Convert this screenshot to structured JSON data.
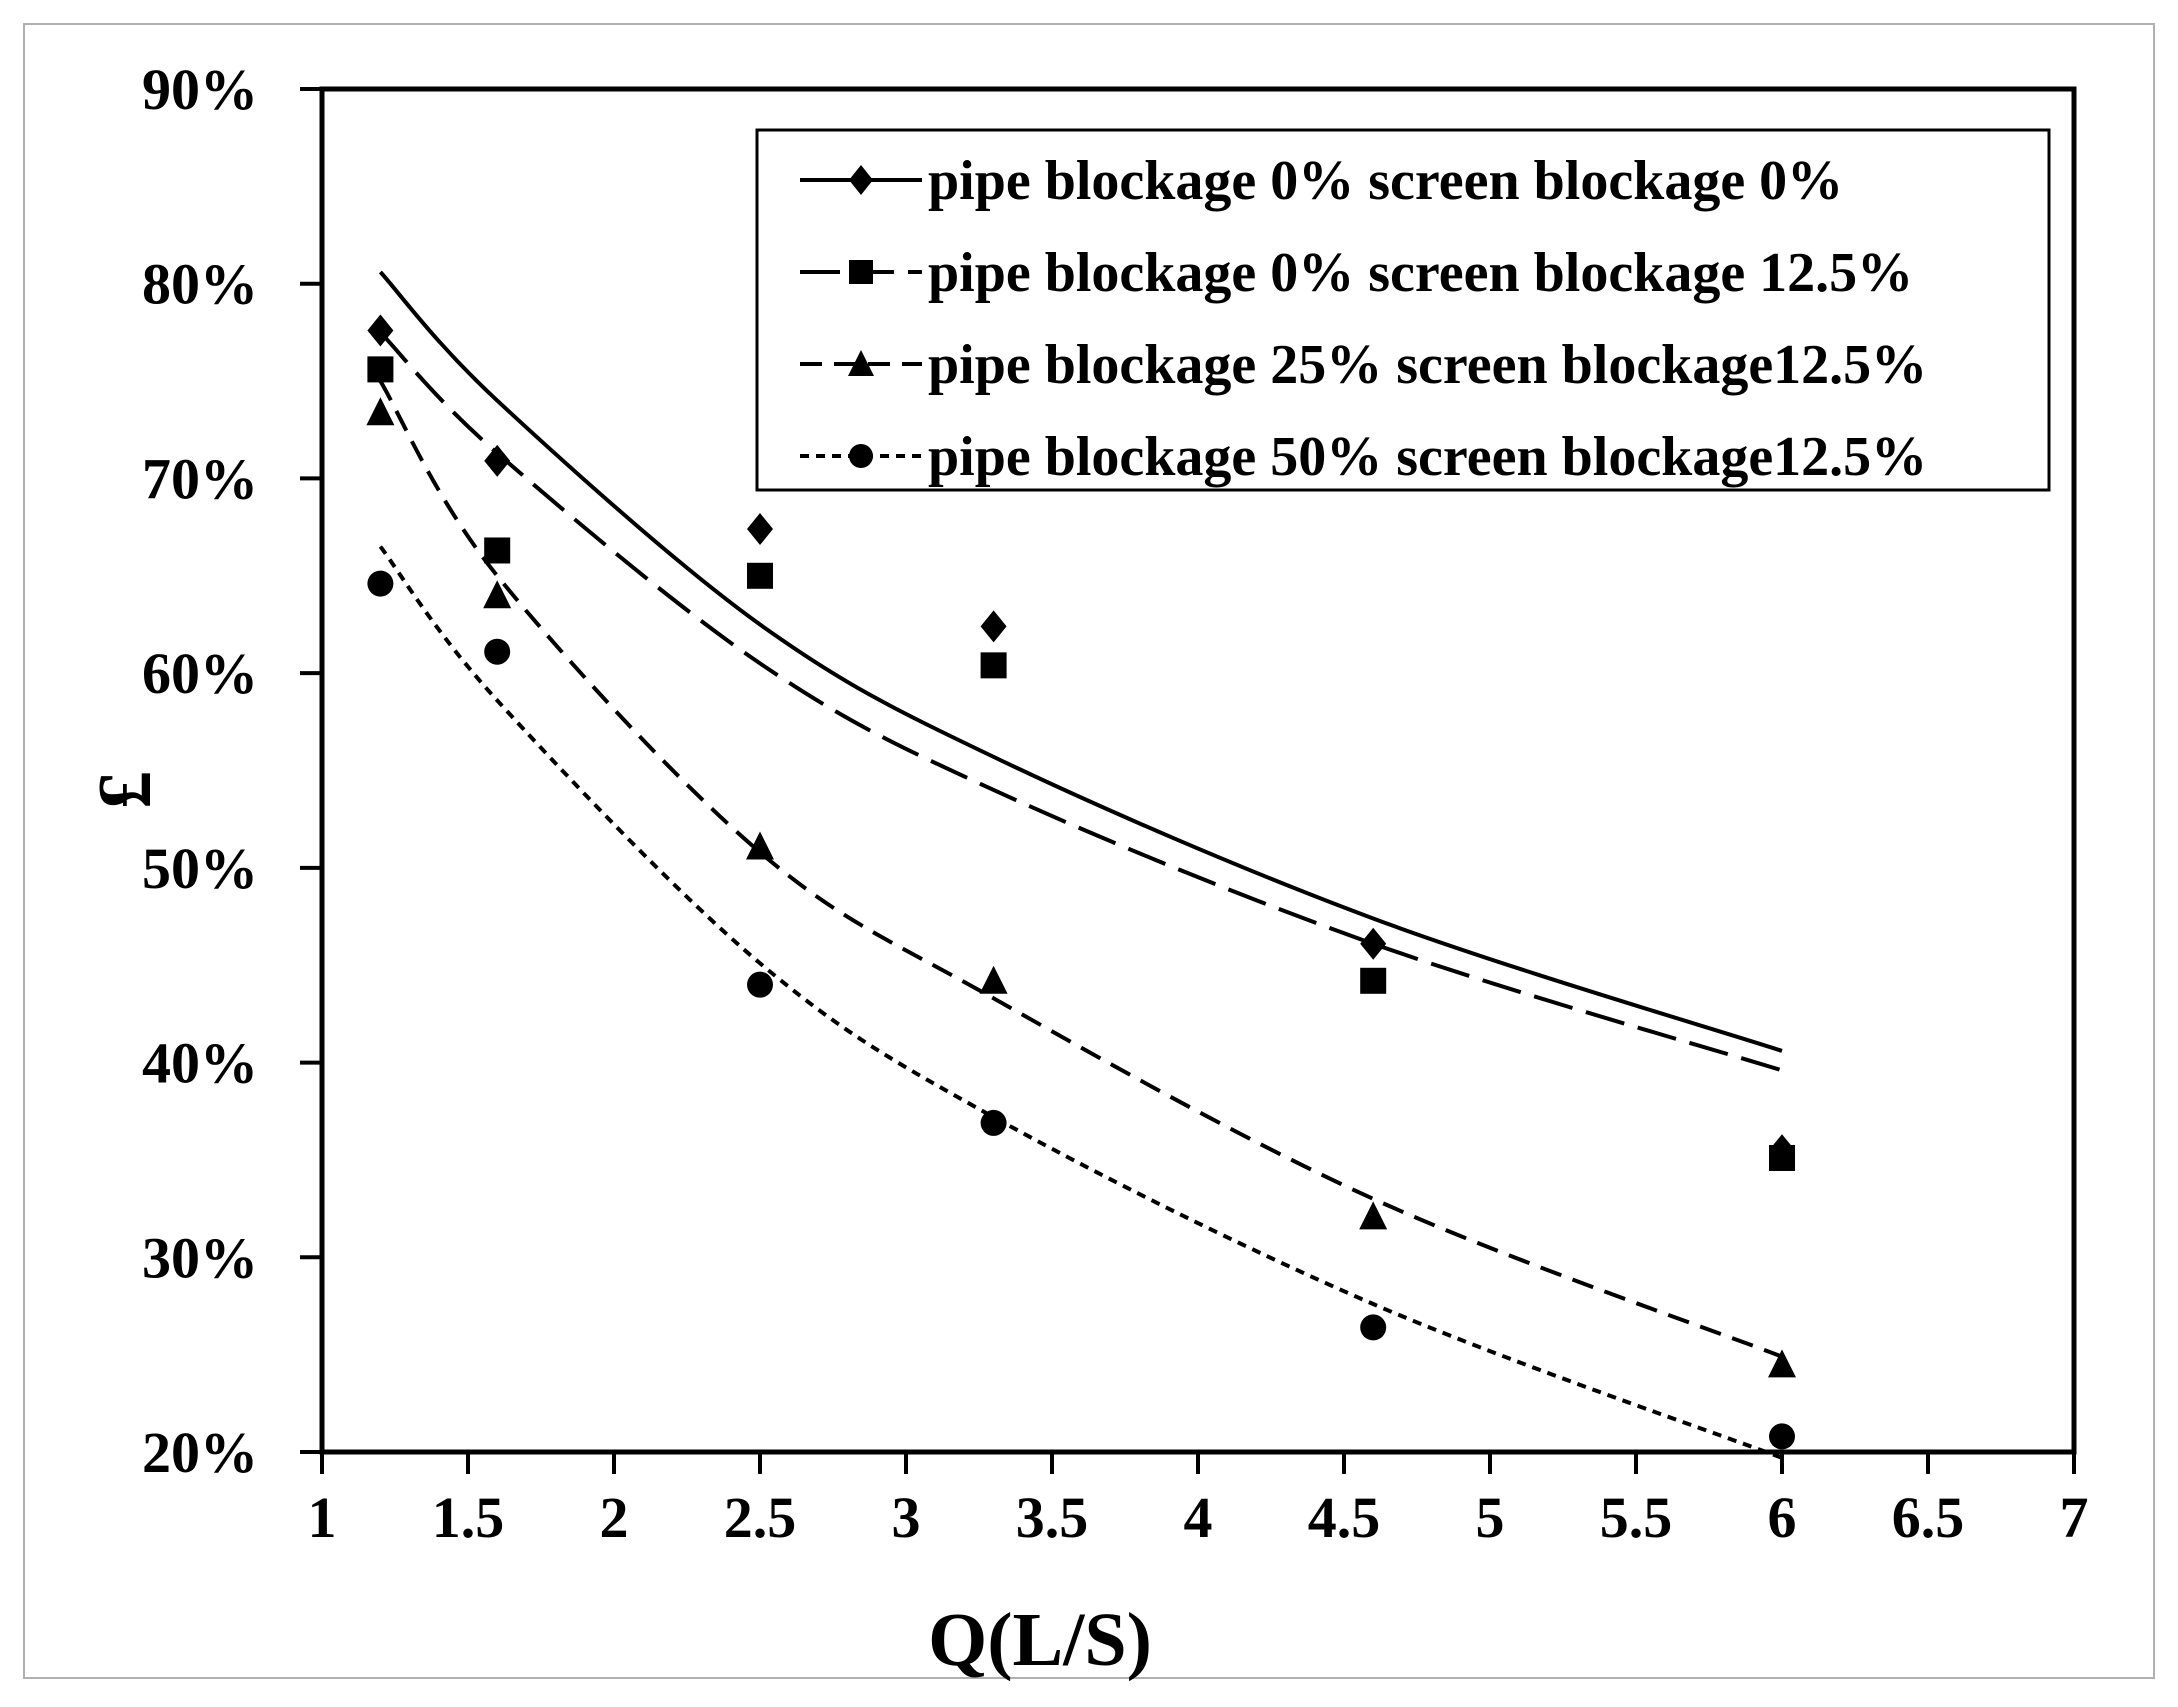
{
  "chart_data": {
    "type": "scatter",
    "xlabel": "Q(L/S)",
    "ylabel": "£",
    "xlim": [
      1,
      7
    ],
    "ylim": [
      0.2,
      0.9
    ],
    "x_ticks": [
      1,
      1.5,
      2,
      2.5,
      3,
      3.5,
      4,
      4.5,
      5,
      5.5,
      6,
      6.5,
      7
    ],
    "x_tick_labels": [
      "1",
      "1.5",
      "2",
      "2.5",
      "3",
      "3.5",
      "4",
      "4.5",
      "5",
      "5.5",
      "6",
      "6.5",
      "7"
    ],
    "y_ticks": [
      0.2,
      0.3,
      0.4,
      0.5,
      0.6,
      0.7,
      0.8,
      0.9
    ],
    "y_tick_labels": [
      "20%",
      "30%",
      "40%",
      "50%",
      "60%",
      "70%",
      "80%",
      "90%"
    ],
    "grid": false,
    "legend_position": "top-right",
    "series": [
      {
        "name": "pipe blockage 0% screen blockage 0%",
        "marker": "diamond",
        "line": "solid",
        "x": [
          1.2,
          1.6,
          2.5,
          3.3,
          4.6,
          6.0
        ],
        "y": [
          0.776,
          0.709,
          0.674,
          0.624,
          0.461,
          0.355
        ],
        "trend_x": [
          1.2,
          1.6,
          2.5,
          3.3,
          4.6,
          6.0
        ],
        "trend_y": [
          0.806,
          0.74,
          0.625,
          0.557,
          0.474,
          0.406
        ]
      },
      {
        "name": "pipe blockage 0% screen blockage 12.5%",
        "marker": "square",
        "line": "long-dash",
        "x": [
          1.2,
          1.6,
          2.5,
          3.3,
          4.6,
          6.0
        ],
        "y": [
          0.756,
          0.663,
          0.65,
          0.604,
          0.442,
          0.351
        ],
        "trend_x": [
          1.2,
          1.6,
          2.5,
          3.3,
          4.6,
          6.0
        ],
        "trend_y": [
          0.775,
          0.713,
          0.605,
          0.54,
          0.461,
          0.396
        ]
      },
      {
        "name": "pipe blockage 25% screen blockage12.5%",
        "marker": "triangle",
        "line": "dash",
        "x": [
          1.2,
          1.6,
          2.5,
          3.3,
          4.6,
          6.0
        ],
        "y": [
          0.734,
          0.64,
          0.511,
          0.442,
          0.321,
          0.245
        ],
        "trend_x": [
          1.2,
          1.6,
          2.5,
          3.3,
          4.6,
          6.0
        ],
        "trend_y": [
          0.75,
          0.65,
          0.508,
          0.433,
          0.33,
          0.249
        ]
      },
      {
        "name": "pipe blockage 50% screen blockage12.5%",
        "marker": "circle",
        "line": "short-dash",
        "x": [
          1.2,
          1.6,
          2.5,
          3.3,
          4.6,
          6.0
        ],
        "y": [
          0.646,
          0.611,
          0.44,
          0.369,
          0.264,
          0.208
        ],
        "trend_x": [
          1.2,
          1.6,
          2.5,
          3.3,
          4.6,
          6.0
        ],
        "trend_y": [
          0.665,
          0.586,
          0.451,
          0.372,
          0.276,
          0.197
        ]
      }
    ]
  }
}
